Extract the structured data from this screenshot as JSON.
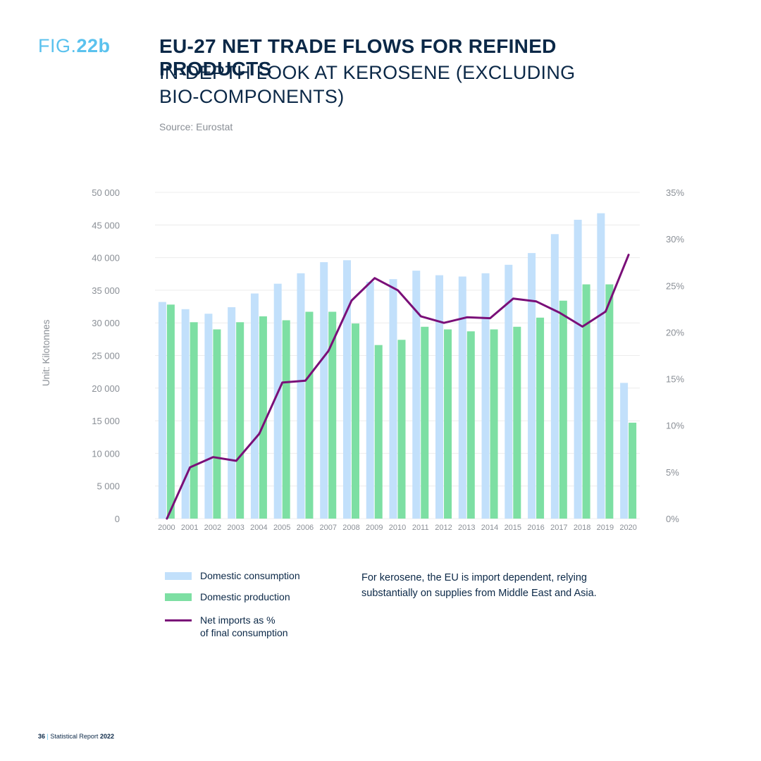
{
  "header": {
    "fig_prefix": "FIG.",
    "fig_number": "22b",
    "title": "EU-27 NET TRADE FLOWS FOR REFINED PRODUCTS",
    "subtitle": "IN-DEPTH LOOK AT KEROSENE (EXCLUDING BIO-COMPONENTS)",
    "source": "Source: Eurostat"
  },
  "unit_label": "Unit: Kilotonnes",
  "legend": {
    "consumption": "Domestic consumption",
    "production": "Domestic production",
    "imports_line1": "Net imports as %",
    "imports_line2": "of final consumption"
  },
  "note": "For kerosene, the EU is import dependent, relying substantially on supplies from Middle East and Asia.",
  "footer": {
    "page": "36",
    "separator": "|",
    "text": "Statistical Report",
    "year": "2022"
  },
  "colors": {
    "consumption": "#c2e0fb",
    "production": "#7ddfa3",
    "imports": "#7a0f78",
    "grid": "#ececec",
    "axis_text": "#8a8f96"
  },
  "chart_data": {
    "type": "bar",
    "categories": [
      "2000",
      "2001",
      "2002",
      "2003",
      "2004",
      "2005",
      "2006",
      "2007",
      "2008",
      "2009",
      "2010",
      "2011",
      "2012",
      "2013",
      "2014",
      "2015",
      "2016",
      "2017",
      "2018",
      "2019",
      "2020"
    ],
    "series": [
      {
        "name": "Domestic consumption",
        "type": "bar",
        "axis": "left",
        "values": [
          33200,
          32100,
          31400,
          32400,
          34500,
          36000,
          37600,
          39300,
          39600,
          36300,
          36700,
          38000,
          37300,
          37100,
          37600,
          38900,
          40700,
          43600,
          45800,
          46800,
          20800
        ]
      },
      {
        "name": "Domestic production",
        "type": "bar",
        "axis": "left",
        "values": [
          32800,
          30100,
          29000,
          30100,
          31000,
          30400,
          31700,
          31700,
          29900,
          26600,
          27400,
          29400,
          29000,
          28700,
          29000,
          29400,
          30800,
          33400,
          35900,
          35900,
          14700
        ]
      },
      {
        "name": "Net imports as % of final consumption",
        "type": "line",
        "axis": "right",
        "values": [
          0,
          5.5,
          6.6,
          6.2,
          9.1,
          14.6,
          14.8,
          18.0,
          23.4,
          25.8,
          24.5,
          21.7,
          21.0,
          21.6,
          21.5,
          23.6,
          23.3,
          22.1,
          20.6,
          22.2,
          28.3
        ]
      }
    ],
    "ylim_left": [
      0,
      50000
    ],
    "ylim_right": [
      0,
      35
    ],
    "yticks_left": [
      "0",
      "5 000",
      "10 000",
      "15 000",
      "20 000",
      "25 000",
      "30 000",
      "35 000",
      "40 000",
      "45 000",
      "50 000"
    ],
    "yticks_right": [
      "0%",
      "5%",
      "10%",
      "15%",
      "20%",
      "25%",
      "30%",
      "35%"
    ],
    "ylabel": "Unit: Kilotonnes",
    "grid": true,
    "legend_position": "bottom-left"
  }
}
